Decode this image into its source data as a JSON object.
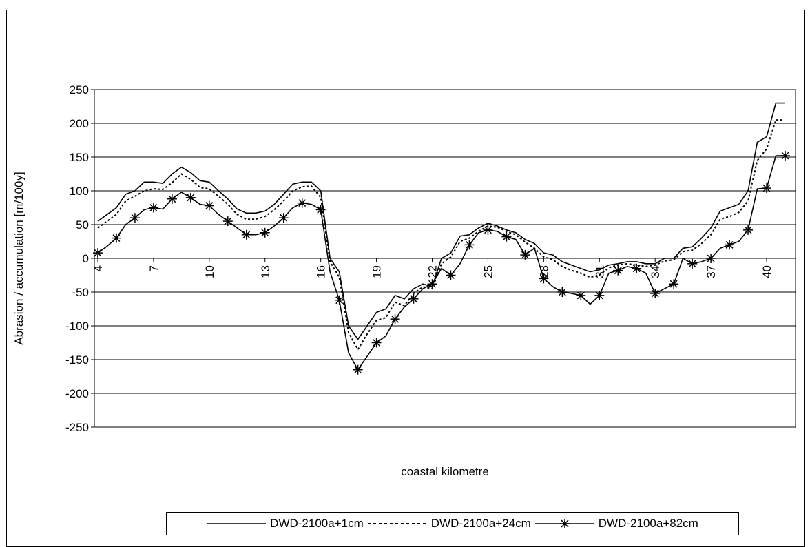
{
  "chart_data": {
    "type": "line",
    "xlabel": "coastal kilometre",
    "ylabel": "Abrasion / accumulation [m/100y]",
    "ylim": [
      -250,
      250
    ],
    "yticks": [
      250,
      200,
      150,
      100,
      50,
      0,
      -50,
      -100,
      -150,
      -200,
      -250
    ],
    "xlim": [
      4,
      41
    ],
    "xticks": [
      4,
      7,
      10,
      13,
      16,
      19,
      22,
      25,
      28,
      31,
      34,
      37,
      40
    ],
    "grid": "horizontal",
    "legend_position": "bottom",
    "x": [
      4,
      4.5,
      5,
      5.5,
      6,
      6.5,
      7,
      7.5,
      8,
      8.5,
      9,
      9.5,
      10,
      10.5,
      11,
      11.5,
      12,
      12.5,
      13,
      13.5,
      14,
      14.5,
      15,
      15.5,
      16,
      16.5,
      17,
      17.5,
      18,
      18.5,
      19,
      19.5,
      20,
      20.5,
      21,
      21.5,
      22,
      22.5,
      23,
      23.5,
      24,
      24.5,
      25,
      25.5,
      26,
      26.5,
      27,
      27.5,
      28,
      28.5,
      29,
      29.5,
      30,
      30.5,
      31,
      31.5,
      32,
      32.5,
      33,
      33.5,
      34,
      34.5,
      35,
      35.5,
      36,
      36.5,
      37,
      37.5,
      38,
      38.5,
      39,
      39.5,
      40,
      40.5,
      41
    ],
    "series": [
      {
        "name": "DWD-2100a+1cm",
        "style": "solid",
        "values": [
          55,
          65,
          75,
          95,
          100,
          113,
          113,
          111,
          125,
          135,
          127,
          115,
          113,
          100,
          88,
          73,
          67,
          67,
          70,
          80,
          95,
          110,
          113,
          113,
          100,
          0,
          -20,
          -100,
          -120,
          -100,
          -80,
          -75,
          -55,
          -60,
          -45,
          -38,
          -42,
          0,
          8,
          33,
          35,
          45,
          52,
          48,
          42,
          38,
          28,
          22,
          8,
          5,
          -5,
          -10,
          -15,
          -20,
          -17,
          -10,
          -8,
          -5,
          -5,
          -8,
          -8,
          0,
          0,
          15,
          17,
          30,
          45,
          70,
          75,
          80,
          100,
          172,
          180,
          230,
          230
        ]
      },
      {
        "name": "DWD-2100a+24cm",
        "style": "dotted",
        "values": [
          45,
          55,
          65,
          85,
          92,
          100,
          103,
          102,
          112,
          125,
          117,
          105,
          103,
          92,
          80,
          65,
          58,
          58,
          62,
          72,
          85,
          100,
          106,
          107,
          90,
          -5,
          -28,
          -110,
          -135,
          -112,
          -92,
          -88,
          -65,
          -70,
          -52,
          -42,
          -45,
          -8,
          2,
          25,
          30,
          40,
          48,
          46,
          40,
          35,
          24,
          15,
          2,
          -2,
          -12,
          -18,
          -22,
          -28,
          -25,
          -14,
          -10,
          -8,
          -10,
          -12,
          -10,
          -4,
          -2,
          10,
          12,
          22,
          35,
          58,
          62,
          68,
          85,
          145,
          162,
          205,
          205
        ]
      },
      {
        "name": "DWD-2100a+82cm",
        "style": "solid-star",
        "values": [
          8,
          18,
          30,
          50,
          60,
          72,
          75,
          73,
          88,
          98,
          90,
          80,
          78,
          65,
          55,
          45,
          35,
          35,
          38,
          48,
          60,
          75,
          82,
          80,
          72,
          -20,
          -62,
          -140,
          -165,
          -145,
          -125,
          -115,
          -90,
          -72,
          -60,
          -45,
          -38,
          -15,
          -25,
          -8,
          20,
          38,
          42,
          40,
          32,
          28,
          5,
          15,
          -30,
          -42,
          -50,
          -52,
          -55,
          -68,
          -55,
          -22,
          -18,
          -12,
          -15,
          -22,
          -52,
          -45,
          -38,
          0,
          -8,
          -5,
          0,
          15,
          20,
          25,
          42,
          103,
          104,
          152,
          152
        ]
      }
    ]
  },
  "legend": {
    "series1": "DWD-2100a+1cm",
    "series2": "DWD-2100a+24cm",
    "series3": "DWD-2100a+82cm"
  }
}
